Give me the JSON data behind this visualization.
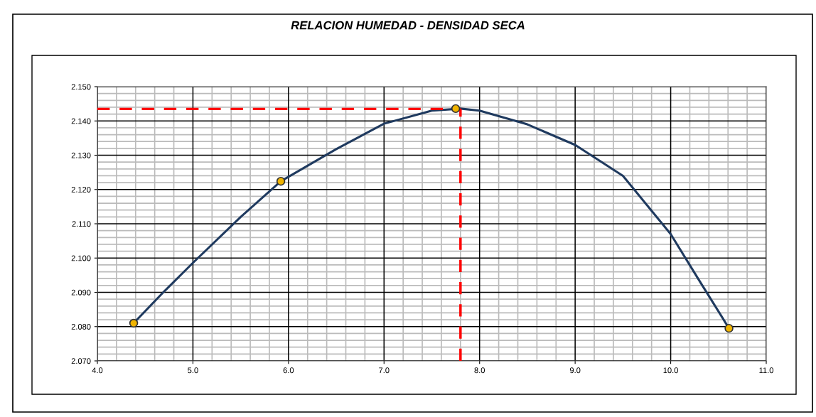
{
  "chart_data": {
    "type": "line",
    "title": "RELACION HUMEDAD - DENSIDAD SECA",
    "series": [
      {
        "color": "#1f3a5f",
        "marker": "none",
        "x": [
          4.38,
          4.7,
          5.0,
          5.5,
          5.92,
          6.5,
          7.0,
          7.5,
          7.8,
          8.0,
          8.5,
          9.0,
          9.5,
          10.0,
          10.3,
          10.61
        ],
        "values": [
          2.081,
          2.0903,
          2.0986,
          2.112,
          2.1224,
          2.1318,
          2.1392,
          2.143,
          2.1436,
          2.143,
          2.139,
          2.133,
          2.124,
          2.107,
          2.0934,
          2.0795
        ]
      },
      {
        "type": "scatter",
        "color": "#f0b400",
        "marker": "circle",
        "x": [
          4.38,
          5.92,
          7.75,
          10.61
        ],
        "values": [
          2.081,
          2.1224,
          2.1436,
          2.0795
        ]
      }
    ],
    "ref_lines": [
      {
        "axis": "x",
        "value": 7.8,
        "color": "#ff0000",
        "line_style": "dashed"
      },
      {
        "axis": "y",
        "value": 2.1435,
        "color": "#ff0000",
        "line_style": "dashed"
      }
    ],
    "xlim": [
      4.0,
      11.0
    ],
    "xticks": [
      {
        "value": 4,
        "label": "4.0"
      },
      {
        "value": 5,
        "label": "5.0"
      },
      {
        "value": 6,
        "label": "6.0"
      },
      {
        "value": 7,
        "label": "7.0"
      },
      {
        "value": 8,
        "label": "8.0"
      },
      {
        "value": 9,
        "label": "9.0"
      },
      {
        "value": 10,
        "label": "10.0"
      },
      {
        "value": 11,
        "label": "11.0"
      }
    ],
    "ylim": [
      2.07,
      2.15
    ],
    "yticks": [
      {
        "value": 2.07,
        "label": "2.070"
      },
      {
        "value": 2.08,
        "label": "2.080"
      },
      {
        "value": 2.09,
        "label": "2.090"
      },
      {
        "value": 2.1,
        "label": "2.100"
      },
      {
        "value": 2.11,
        "label": "2.110"
      },
      {
        "value": 2.12,
        "label": "2.120"
      },
      {
        "value": 2.13,
        "label": "2.130"
      },
      {
        "value": 2.14,
        "label": "2.140"
      },
      {
        "value": 2.15,
        "label": "2.150"
      }
    ],
    "grid": true,
    "legend": false
  }
}
